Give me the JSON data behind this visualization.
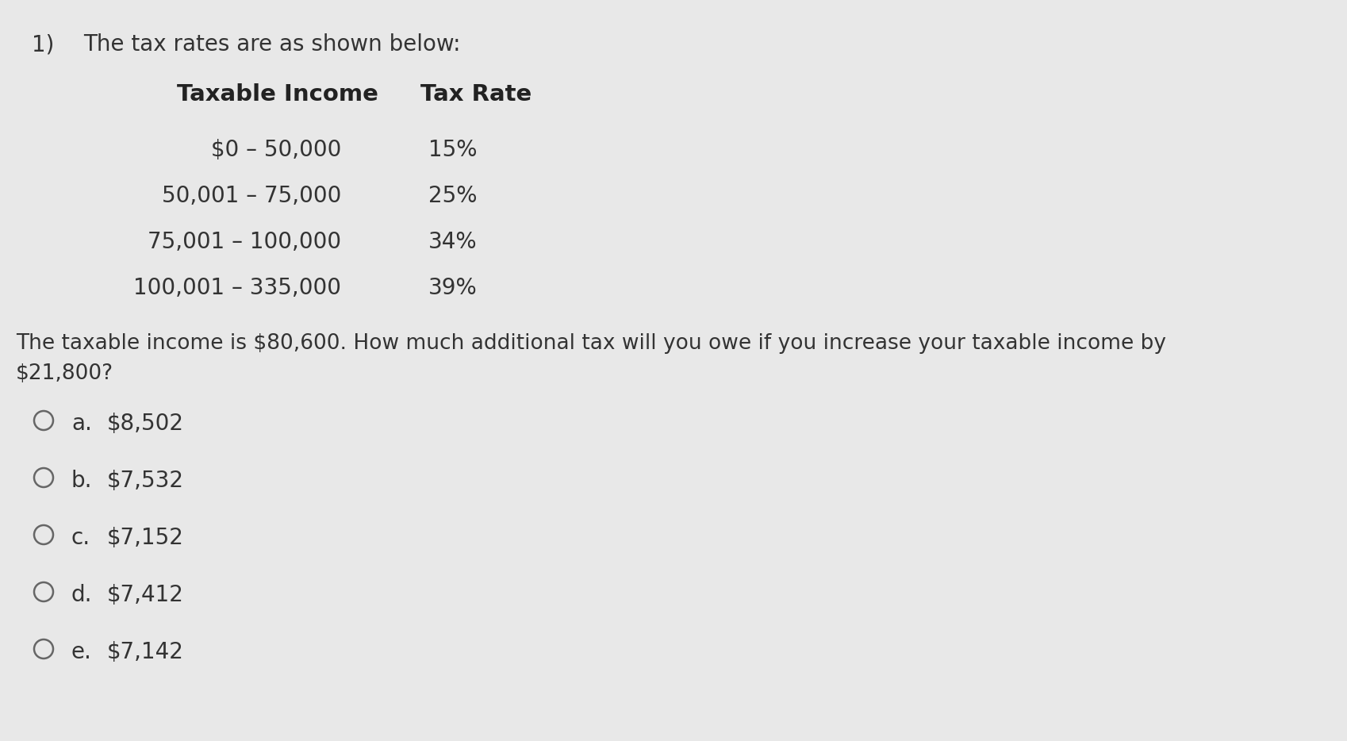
{
  "background_color": "#e8e8e8",
  "question_number": "1)",
  "question_intro": "The tax rates are as shown below:",
  "col1_header": "Taxable Income",
  "col2_header": "Tax Rate",
  "table_rows": [
    {
      "income": "$0 – 50,000",
      "rate": "15%"
    },
    {
      "income": "50,001 – 75,000",
      "rate": "25%"
    },
    {
      "income": "75,001 – 100,000",
      "rate": "34%"
    },
    {
      "income": "100,001 – 335,000",
      "rate": "39%"
    }
  ],
  "question_text_line1": "The taxable income is $80,600. How much additional tax will you owe if you increase your taxable income by",
  "question_text_line2": "$21,800?",
  "choices": [
    {
      "label": "a.",
      "value": "$8,502"
    },
    {
      "label": "b.",
      "value": "$7,532"
    },
    {
      "label": "c.",
      "value": "$7,152"
    },
    {
      "label": "d.",
      "value": "$7,412"
    },
    {
      "label": "e.",
      "value": "$7,142"
    }
  ],
  "text_color": "#333333",
  "header_color": "#222222",
  "circle_color": "#666666",
  "font_size_title": 20,
  "font_size_header": 21,
  "font_size_table": 20,
  "font_size_question": 19,
  "font_size_choices": 20
}
